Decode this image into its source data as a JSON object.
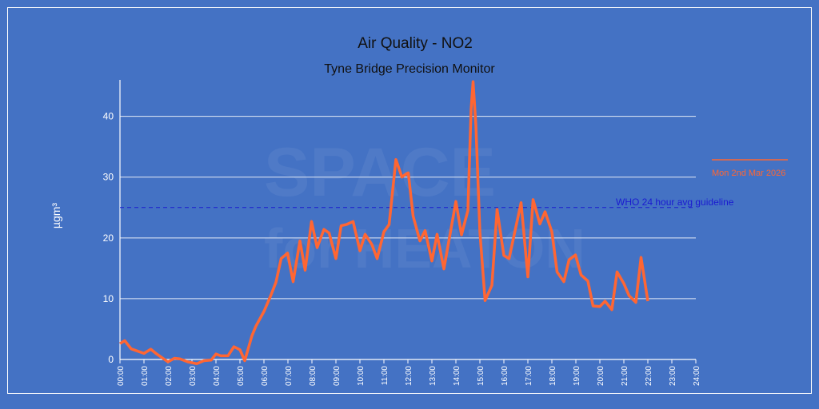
{
  "chart_data": {
    "type": "line",
    "title": "Air Quality - NO2",
    "subtitle": "Tyne Bridge Precision Monitor",
    "ylabel": "µgm³",
    "xlabel": "",
    "ylim": [
      0,
      46
    ],
    "yticks": [
      0,
      10,
      20,
      30,
      40
    ],
    "xticks": [
      "00:00",
      "01:00",
      "02:00",
      "03:00",
      "04:00",
      "05:00",
      "06:00",
      "07:00",
      "08:00",
      "09:00",
      "10:00",
      "11:00",
      "12:00",
      "13:00",
      "14:00",
      "15:00",
      "16:00",
      "17:00",
      "18:00",
      "19:00",
      "20:00",
      "21:00",
      "22:00",
      "23:00",
      "24:00"
    ],
    "grid": true,
    "legend_placement": "right",
    "series": [
      {
        "name": "Mon 2nd Mar 2026",
        "color": "#ff6633",
        "x": [
          "00:00",
          "00:12",
          "00:28",
          "01:00",
          "01:17",
          "01:30",
          "02:00",
          "02:16",
          "02:30",
          "02:50",
          "03:12",
          "03:30",
          "03:48",
          "04:00",
          "04:12",
          "04:30",
          "04:45",
          "05:00",
          "05:12",
          "05:30",
          "05:40",
          "06:00",
          "06:17",
          "06:30",
          "06:43",
          "06:59",
          "07:13",
          "07:30",
          "07:43",
          "07:59",
          "08:13",
          "08:30",
          "08:43",
          "09:00",
          "09:13",
          "09:26",
          "09:43",
          "10:00",
          "10:13",
          "10:30",
          "10:43",
          "11:00",
          "11:13",
          "11:30",
          "11:45",
          "11:57",
          "12:01",
          "12:13",
          "12:30",
          "12:43",
          "13:00",
          "13:13",
          "13:30",
          "14:00",
          "14:14",
          "14:30",
          "14:38",
          "14:43",
          "14:50",
          "15:00",
          "15:13",
          "15:30",
          "15:43",
          "16:00",
          "16:13",
          "16:43",
          "17:00",
          "17:13",
          "17:30",
          "17:43",
          "18:00",
          "18:13",
          "18:30",
          "18:43",
          "18:59",
          "19:13",
          "19:30",
          "19:43",
          "20:00",
          "20:13",
          "20:30",
          "20:43",
          "21:00",
          "21:13",
          "21:30",
          "21:43",
          "22:00"
        ],
        "y": [
          2.6,
          3.1,
          1.75,
          1.0,
          1.7,
          1.0,
          -0.4,
          0.2,
          0.1,
          -0.4,
          -0.7,
          -0.2,
          -0.1,
          0.9,
          0.6,
          0.6,
          2.1,
          1.6,
          -0.2,
          3.9,
          5.5,
          7.9,
          10.5,
          12.7,
          16.6,
          17.5,
          12.8,
          19.5,
          14.7,
          22.7,
          18.4,
          21.4,
          20.8,
          16.6,
          22.0,
          22.2,
          22.7,
          17.9,
          20.6,
          18.9,
          16.6,
          21.0,
          22.2,
          32.9,
          30.0,
          30.6,
          30.7,
          23.6,
          19.5,
          21.2,
          16.2,
          20.6,
          14.9,
          26.0,
          20.5,
          24.5,
          41.1,
          45.7,
          38.5,
          21.0,
          9.7,
          12.2,
          24.7,
          17.1,
          16.6,
          25.8,
          13.6,
          26.3,
          22.3,
          24.3,
          21.0,
          14.4,
          12.8,
          16.4,
          17.2,
          13.9,
          12.9,
          8.8,
          8.7,
          9.6,
          8.2,
          14.4,
          12.5,
          10.5,
          9.4,
          16.8,
          9.6
        ]
      }
    ],
    "reference_line": {
      "label": "WHO 24 hour avg guideline",
      "value": 25,
      "color": "#1a1ad0"
    }
  },
  "watermark": {
    "line1": "SPACE",
    "line2": "for HEATON"
  },
  "colors": {
    "background": "#4472c4",
    "series": "#ff6633",
    "grid": "#ffffff"
  }
}
